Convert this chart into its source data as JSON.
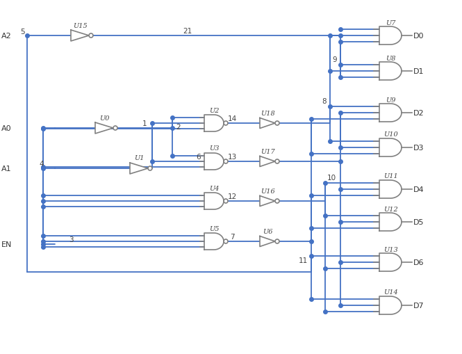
{
  "bg_color": "#ffffff",
  "wire_color": "#4472c4",
  "gate_outline": "#808080",
  "text_color": "#404040",
  "wire_lw": 1.3,
  "gate_lw": 1.2,
  "dot_size": 4.0,
  "figsize": [
    6.65,
    5.1
  ],
  "dpi": 100,
  "input_labels": [
    "A2",
    "A0",
    "A1",
    "EN"
  ],
  "output_labels": [
    "D0",
    "D1",
    "D2",
    "D3",
    "D4",
    "D5",
    "D6",
    "D7"
  ],
  "gate_labels_inv": [
    "U15",
    "U0",
    "U1"
  ],
  "gate_labels_nand": [
    "U2",
    "U3",
    "U4",
    "U5"
  ],
  "gate_labels_buf": [
    "U18",
    "U17",
    "U16",
    "U6"
  ],
  "gate_labels_and": [
    "U7",
    "U8",
    "U9",
    "U10",
    "U11",
    "U12",
    "U13",
    "U14"
  ],
  "pin_labels": [
    "5",
    "1",
    "4",
    "2",
    "6",
    "14",
    "13",
    "12",
    "7",
    "9",
    "8",
    "10",
    "11",
    "3",
    "21"
  ]
}
